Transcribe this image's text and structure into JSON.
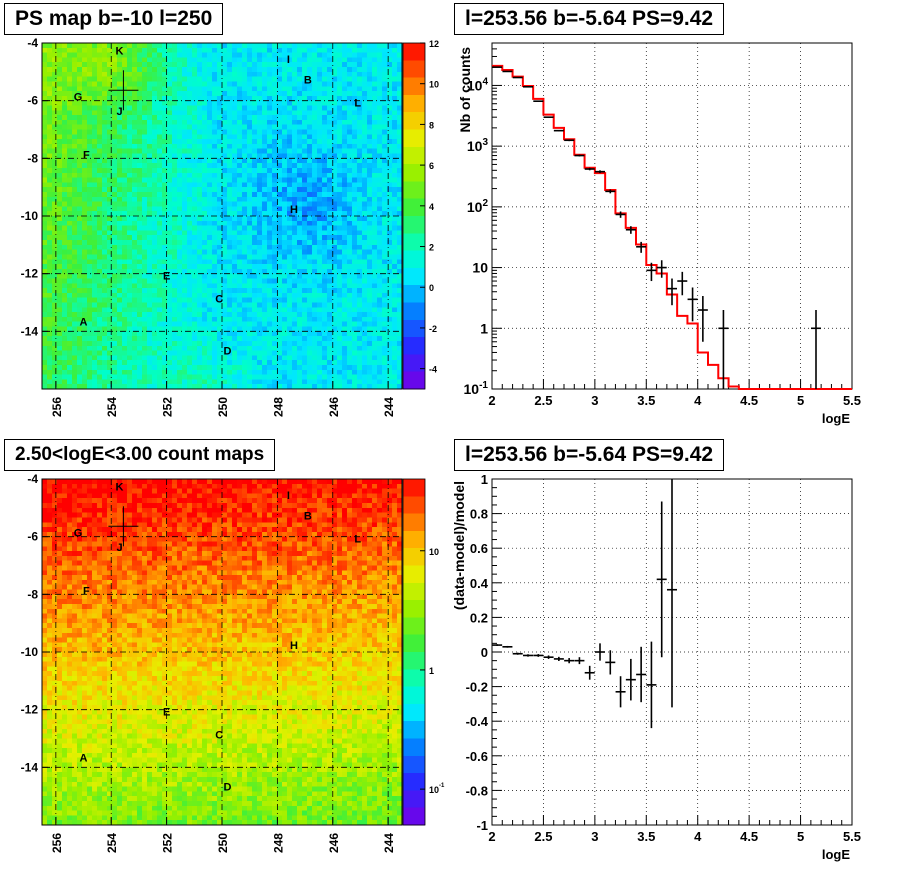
{
  "panels": {
    "ps_map_title": "PS map b=-10 l=250",
    "spectrum_title": "l=253.56 b=-5.64 PS=9.42",
    "count_map_title": "2.50<logE<3.00 count maps",
    "residual_title": "l=253.56 b=-5.64 PS=9.42"
  },
  "chart_data": [
    {
      "name": "ps-map",
      "type": "heatmap",
      "title": "PS map b=-10 l=250",
      "x_ticks": [
        "256",
        "254",
        "252",
        "250",
        "248",
        "246",
        "244"
      ],
      "y_ticks": [
        "-4",
        "-6",
        "-8",
        "-10",
        "-12",
        "-14"
      ],
      "xlim": [
        256.5,
        243.5
      ],
      "ylim": [
        -16,
        -4
      ],
      "grid": true,
      "colorbar": {
        "min": -5,
        "max": 12,
        "ticks": [
          "12",
          "10",
          "8",
          "6",
          "4",
          "2",
          "0",
          "-2",
          "-4"
        ]
      },
      "marker": {
        "l": 253.56,
        "b": -5.64
      },
      "sources": [
        {
          "label": "K",
          "l": 253.7,
          "b": -4.4
        },
        {
          "label": "G",
          "l": 255.2,
          "b": -6.0
        },
        {
          "label": "J",
          "l": 253.7,
          "b": -6.5
        },
        {
          "label": "F",
          "l": 254.9,
          "b": -8.0
        },
        {
          "label": "I",
          "l": 247.6,
          "b": -4.7
        },
        {
          "label": "B",
          "l": 246.9,
          "b": -5.4
        },
        {
          "label": "L",
          "l": 245.1,
          "b": -6.2
        },
        {
          "label": "H",
          "l": 247.4,
          "b": -9.9
        },
        {
          "label": "E",
          "l": 252.0,
          "b": -12.2
        },
        {
          "label": "C",
          "l": 250.1,
          "b": -13.0
        },
        {
          "label": "A",
          "l": 255.0,
          "b": -13.8
        },
        {
          "label": "D",
          "l": 249.8,
          "b": -14.8
        }
      ]
    },
    {
      "name": "spectrum",
      "type": "line",
      "title": "l=253.56 b=-5.64 PS=9.42",
      "xlabel": "logE",
      "ylabel": "Nb of counts",
      "xlim": [
        2,
        5.5
      ],
      "ylim": [
        0.1,
        50000
      ],
      "yscale": "log",
      "x_ticks": [
        "2",
        "2.5",
        "3",
        "3.5",
        "4",
        "4.5",
        "5",
        "5.5"
      ],
      "y_ticks": [
        "10^-1",
        "1",
        "10",
        "10^2",
        "10^3",
        "10^4"
      ],
      "grid": true,
      "data_points": [
        {
          "x": 2.05,
          "y": 20000,
          "elo": 19800,
          "ehi": 20200
        },
        {
          "x": 2.15,
          "y": 17000,
          "elo": 16800,
          "ehi": 17200
        },
        {
          "x": 2.25,
          "y": 13500,
          "elo": 13300,
          "ehi": 13700
        },
        {
          "x": 2.35,
          "y": 9500,
          "elo": 9350,
          "ehi": 9650
        },
        {
          "x": 2.45,
          "y": 5500,
          "elo": 5400,
          "ehi": 5600
        },
        {
          "x": 2.55,
          "y": 3000,
          "elo": 2950,
          "ehi": 3050
        },
        {
          "x": 2.65,
          "y": 1800,
          "elo": 1760,
          "ehi": 1840
        },
        {
          "x": 2.75,
          "y": 1250,
          "elo": 1210,
          "ehi": 1290
        },
        {
          "x": 2.85,
          "y": 700,
          "elo": 675,
          "ehi": 725
        },
        {
          "x": 2.95,
          "y": 420,
          "elo": 400,
          "ehi": 440
        },
        {
          "x": 3.05,
          "y": 380,
          "elo": 360,
          "ehi": 400
        },
        {
          "x": 3.15,
          "y": 180,
          "elo": 167,
          "ehi": 193
        },
        {
          "x": 3.25,
          "y": 75,
          "elo": 66,
          "ehi": 84
        },
        {
          "x": 3.35,
          "y": 42,
          "elo": 36,
          "ehi": 48
        },
        {
          "x": 3.45,
          "y": 22,
          "elo": 17.5,
          "ehi": 26.5
        },
        {
          "x": 3.55,
          "y": 9,
          "elo": 6,
          "ehi": 12
        },
        {
          "x": 3.65,
          "y": 10,
          "elo": 6.8,
          "ehi": 13.2
        },
        {
          "x": 3.75,
          "y": 4.5,
          "elo": 2.4,
          "ehi": 6.6
        },
        {
          "x": 3.85,
          "y": 6,
          "elo": 3.5,
          "ehi": 8.5
        },
        {
          "x": 3.95,
          "y": 3,
          "elo": 1.3,
          "ehi": 4.7
        },
        {
          "x": 4.05,
          "y": 2,
          "elo": 0.6,
          "ehi": 3.4
        },
        {
          "x": 4.25,
          "y": 1,
          "elo": 0.1,
          "ehi": 2.0
        },
        {
          "x": 5.15,
          "y": 1,
          "elo": 0.1,
          "ehi": 2.0
        }
      ],
      "model_step": {
        "edges": [
          2.0,
          2.1,
          2.2,
          2.3,
          2.4,
          2.5,
          2.6,
          2.7,
          2.8,
          2.9,
          3.0,
          3.1,
          3.2,
          3.3,
          3.4,
          3.5,
          3.6,
          3.7,
          3.8,
          3.9,
          4.0,
          4.1,
          4.2,
          4.3,
          4.4,
          5.5
        ],
        "values": [
          21000,
          18000,
          14000,
          9800,
          6000,
          3300,
          2000,
          1300,
          720,
          440,
          360,
          190,
          78,
          45,
          24,
          11,
          8,
          3.6,
          1.6,
          1.2,
          0.4,
          0.25,
          0.15,
          0.11,
          0.1
        ]
      },
      "colors": {
        "model": "#ff0000",
        "data": "#000000"
      }
    },
    {
      "name": "count-map",
      "type": "heatmap",
      "title": "2.50<logE<3.00 count maps",
      "x_ticks": [
        "256",
        "254",
        "252",
        "250",
        "248",
        "246",
        "244"
      ],
      "y_ticks": [
        "-4",
        "-6",
        "-8",
        "-10",
        "-12",
        "-14"
      ],
      "xlim": [
        256.5,
        243.5
      ],
      "ylim": [
        -16,
        -4
      ],
      "grid": true,
      "colorbar": {
        "scale": "log",
        "min": 0.05,
        "max": 40,
        "ticks": [
          "10",
          "1",
          "10^-1"
        ]
      },
      "marker": {
        "l": 253.56,
        "b": -5.64
      },
      "sources": [
        {
          "label": "K",
          "l": 253.7,
          "b": -4.4
        },
        {
          "label": "G",
          "l": 255.2,
          "b": -6.0
        },
        {
          "label": "J",
          "l": 253.7,
          "b": -6.5
        },
        {
          "label": "F",
          "l": 254.9,
          "b": -8.0
        },
        {
          "label": "I",
          "l": 247.6,
          "b": -4.7
        },
        {
          "label": "B",
          "l": 246.9,
          "b": -5.4
        },
        {
          "label": "L",
          "l": 245.1,
          "b": -6.2
        },
        {
          "label": "H",
          "l": 247.4,
          "b": -9.9
        },
        {
          "label": "E",
          "l": 252.0,
          "b": -12.2
        },
        {
          "label": "C",
          "l": 250.1,
          "b": -13.0
        },
        {
          "label": "A",
          "l": 255.0,
          "b": -13.8
        },
        {
          "label": "D",
          "l": 249.8,
          "b": -14.8
        }
      ]
    },
    {
      "name": "residuals",
      "type": "scatter",
      "title": "l=253.56 b=-5.64 PS=9.42",
      "xlabel": "logE",
      "ylabel": "(data-model)/model",
      "xlim": [
        2,
        5.5
      ],
      "ylim": [
        -1,
        1
      ],
      "x_ticks": [
        "2",
        "2.5",
        "3",
        "3.5",
        "4",
        "4.5",
        "5",
        "5.5"
      ],
      "y_ticks": [
        "1",
        "0.8",
        "0.6",
        "0.4",
        "0.2",
        "0",
        "-0.2",
        "-0.4",
        "-0.6",
        "-0.8",
        "-1"
      ],
      "grid": true,
      "data_points": [
        {
          "x": 2.05,
          "y": 0.04,
          "e": 0.005
        },
        {
          "x": 2.15,
          "y": 0.03,
          "e": 0.005
        },
        {
          "x": 2.25,
          "y": -0.01,
          "e": 0.006
        },
        {
          "x": 2.35,
          "y": -0.02,
          "e": 0.007
        },
        {
          "x": 2.45,
          "y": -0.02,
          "e": 0.008
        },
        {
          "x": 2.55,
          "y": -0.03,
          "e": 0.01
        },
        {
          "x": 2.65,
          "y": -0.04,
          "e": 0.012
        },
        {
          "x": 2.75,
          "y": -0.05,
          "e": 0.015
        },
        {
          "x": 2.85,
          "y": -0.05,
          "e": 0.02
        },
        {
          "x": 2.95,
          "y": -0.12,
          "e": 0.04
        },
        {
          "x": 3.05,
          "y": 0.0,
          "e": 0.05
        },
        {
          "x": 3.15,
          "y": -0.06,
          "e": 0.07
        },
        {
          "x": 3.25,
          "y": -0.23,
          "e": 0.09
        },
        {
          "x": 3.35,
          "y": -0.16,
          "e": 0.12
        },
        {
          "x": 3.45,
          "y": -0.13,
          "e": 0.16
        },
        {
          "x": 3.55,
          "y": -0.19,
          "e": 0.25
        },
        {
          "x": 3.65,
          "y": 0.42,
          "e": 0.45
        },
        {
          "x": 3.75,
          "y": 0.36,
          "e": 0.68
        }
      ]
    }
  ]
}
